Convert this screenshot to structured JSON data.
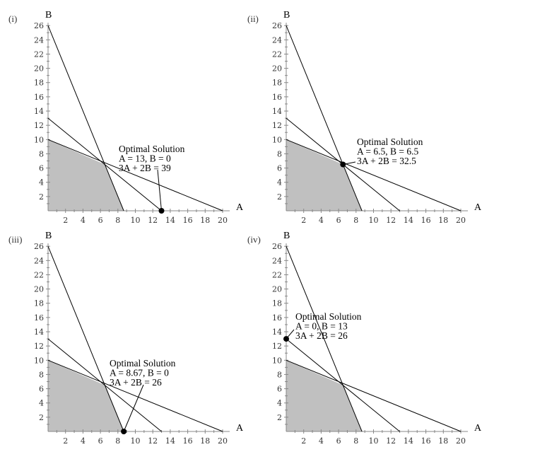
{
  "chart_data": [
    {
      "type": "line",
      "panel_label": "(i)",
      "xlabel": "A",
      "ylabel": "B",
      "xlim": [
        0,
        20
      ],
      "ylim": [
        0,
        26
      ],
      "xticks": [
        "2",
        "4",
        "6",
        "8",
        "10",
        "12",
        "14",
        "16",
        "18",
        "20"
      ],
      "yticks": [
        "2",
        "4",
        "6",
        "8",
        "10",
        "12",
        "14",
        "16",
        "18",
        "20",
        "22",
        "24",
        "26"
      ],
      "constraint_lines": [
        {
          "x": [
            0,
            20
          ],
          "y": [
            10,
            0
          ]
        },
        {
          "x": [
            0,
            8.67
          ],
          "y": [
            26,
            0
          ]
        },
        {
          "x": [
            0,
            13
          ],
          "y": [
            13,
            0
          ]
        }
      ],
      "feasible_region": {
        "x": [
          0,
          0,
          6.5,
          8.67
        ],
        "y": [
          0,
          10,
          6.5,
          0
        ]
      },
      "optimal_point": {
        "x": 13,
        "y": 0
      },
      "annotation": {
        "lines": [
          "Optimal Solution",
          "A = 13, B = 0",
          "3A + 2B = 39"
        ],
        "anchor": {
          "x": 10,
          "y": 8.5
        }
      }
    },
    {
      "type": "line",
      "panel_label": "(ii)",
      "xlabel": "A",
      "ylabel": "B",
      "xlim": [
        0,
        20
      ],
      "ylim": [
        0,
        26
      ],
      "xticks": [
        "2",
        "4",
        "6",
        "8",
        "10",
        "12",
        "14",
        "16",
        "18",
        "20"
      ],
      "yticks": [
        "2",
        "4",
        "6",
        "8",
        "10",
        "12",
        "14",
        "16",
        "18",
        "20",
        "22",
        "24",
        "26"
      ],
      "constraint_lines": [
        {
          "x": [
            0,
            20
          ],
          "y": [
            10,
            0
          ]
        },
        {
          "x": [
            0,
            8.67
          ],
          "y": [
            26,
            0
          ]
        },
        {
          "x": [
            0,
            13
          ],
          "y": [
            13,
            0
          ]
        }
      ],
      "feasible_region": {
        "x": [
          0,
          0,
          6.5,
          8.67
        ],
        "y": [
          0,
          10,
          6.5,
          0
        ]
      },
      "optimal_point": {
        "x": 6.5,
        "y": 6.5
      },
      "annotation": {
        "lines": [
          "Optimal Solution",
          "A = 6.5, B = 6.5",
          "3A + 2B = 32.5"
        ],
        "anchor": {
          "x": 8,
          "y": 9.5
        }
      }
    },
    {
      "type": "line",
      "panel_label": "(iii)",
      "xlabel": "A",
      "ylabel": "B",
      "xlim": [
        0,
        20
      ],
      "ylim": [
        0,
        26
      ],
      "xticks": [
        "2",
        "4",
        "6",
        "8",
        "10",
        "12",
        "14",
        "16",
        "18",
        "20"
      ],
      "yticks": [
        "2",
        "4",
        "6",
        "8",
        "10",
        "12",
        "14",
        "16",
        "18",
        "20",
        "22",
        "24",
        "26"
      ],
      "constraint_lines": [
        {
          "x": [
            0,
            20
          ],
          "y": [
            10,
            0
          ]
        },
        {
          "x": [
            0,
            8.67
          ],
          "y": [
            26,
            0
          ]
        },
        {
          "x": [
            0,
            13
          ],
          "y": [
            13,
            0
          ]
        }
      ],
      "feasible_region": {
        "x": [
          0,
          0,
          6.5,
          8.67
        ],
        "y": [
          0,
          10,
          6.5,
          0
        ]
      },
      "optimal_point": {
        "x": 8.67,
        "y": 0
      },
      "annotation": {
        "lines": [
          "Optimal Solution",
          "A = 8.67, B = 0",
          "3A + 2B = 26"
        ],
        "anchor": {
          "x": 9,
          "y": 8.8
        }
      }
    },
    {
      "type": "line",
      "panel_label": "(iv)",
      "xlabel": "A",
      "ylabel": "B",
      "xlim": [
        0,
        20
      ],
      "ylim": [
        0,
        26
      ],
      "xticks": [
        "2",
        "4",
        "6",
        "8",
        "10",
        "12",
        "14",
        "16",
        "18",
        "20"
      ],
      "yticks": [
        "2",
        "4",
        "6",
        "8",
        "10",
        "12",
        "14",
        "16",
        "18",
        "20",
        "22",
        "24",
        "26"
      ],
      "constraint_lines": [
        {
          "x": [
            0,
            20
          ],
          "y": [
            10,
            0
          ]
        },
        {
          "x": [
            0,
            8.67
          ],
          "y": [
            26,
            0
          ]
        },
        {
          "x": [
            0,
            13
          ],
          "y": [
            13,
            0
          ]
        }
      ],
      "feasible_region": {
        "x": [
          0,
          0,
          6.5,
          8.67
        ],
        "y": [
          0,
          10,
          6.5,
          0
        ]
      },
      "optimal_point": {
        "x": 0,
        "y": 13
      },
      "annotation": {
        "lines": [
          "Optimal Solution",
          "A = 0, B = 13",
          "3A + 2B = 26"
        ],
        "anchor": {
          "x": 1,
          "y": 15.5
        }
      }
    }
  ],
  "colors": {
    "feasible_fill": "#c0c0c0",
    "constraint_line": "#000000",
    "axis": "#888888",
    "point": "#000000"
  }
}
